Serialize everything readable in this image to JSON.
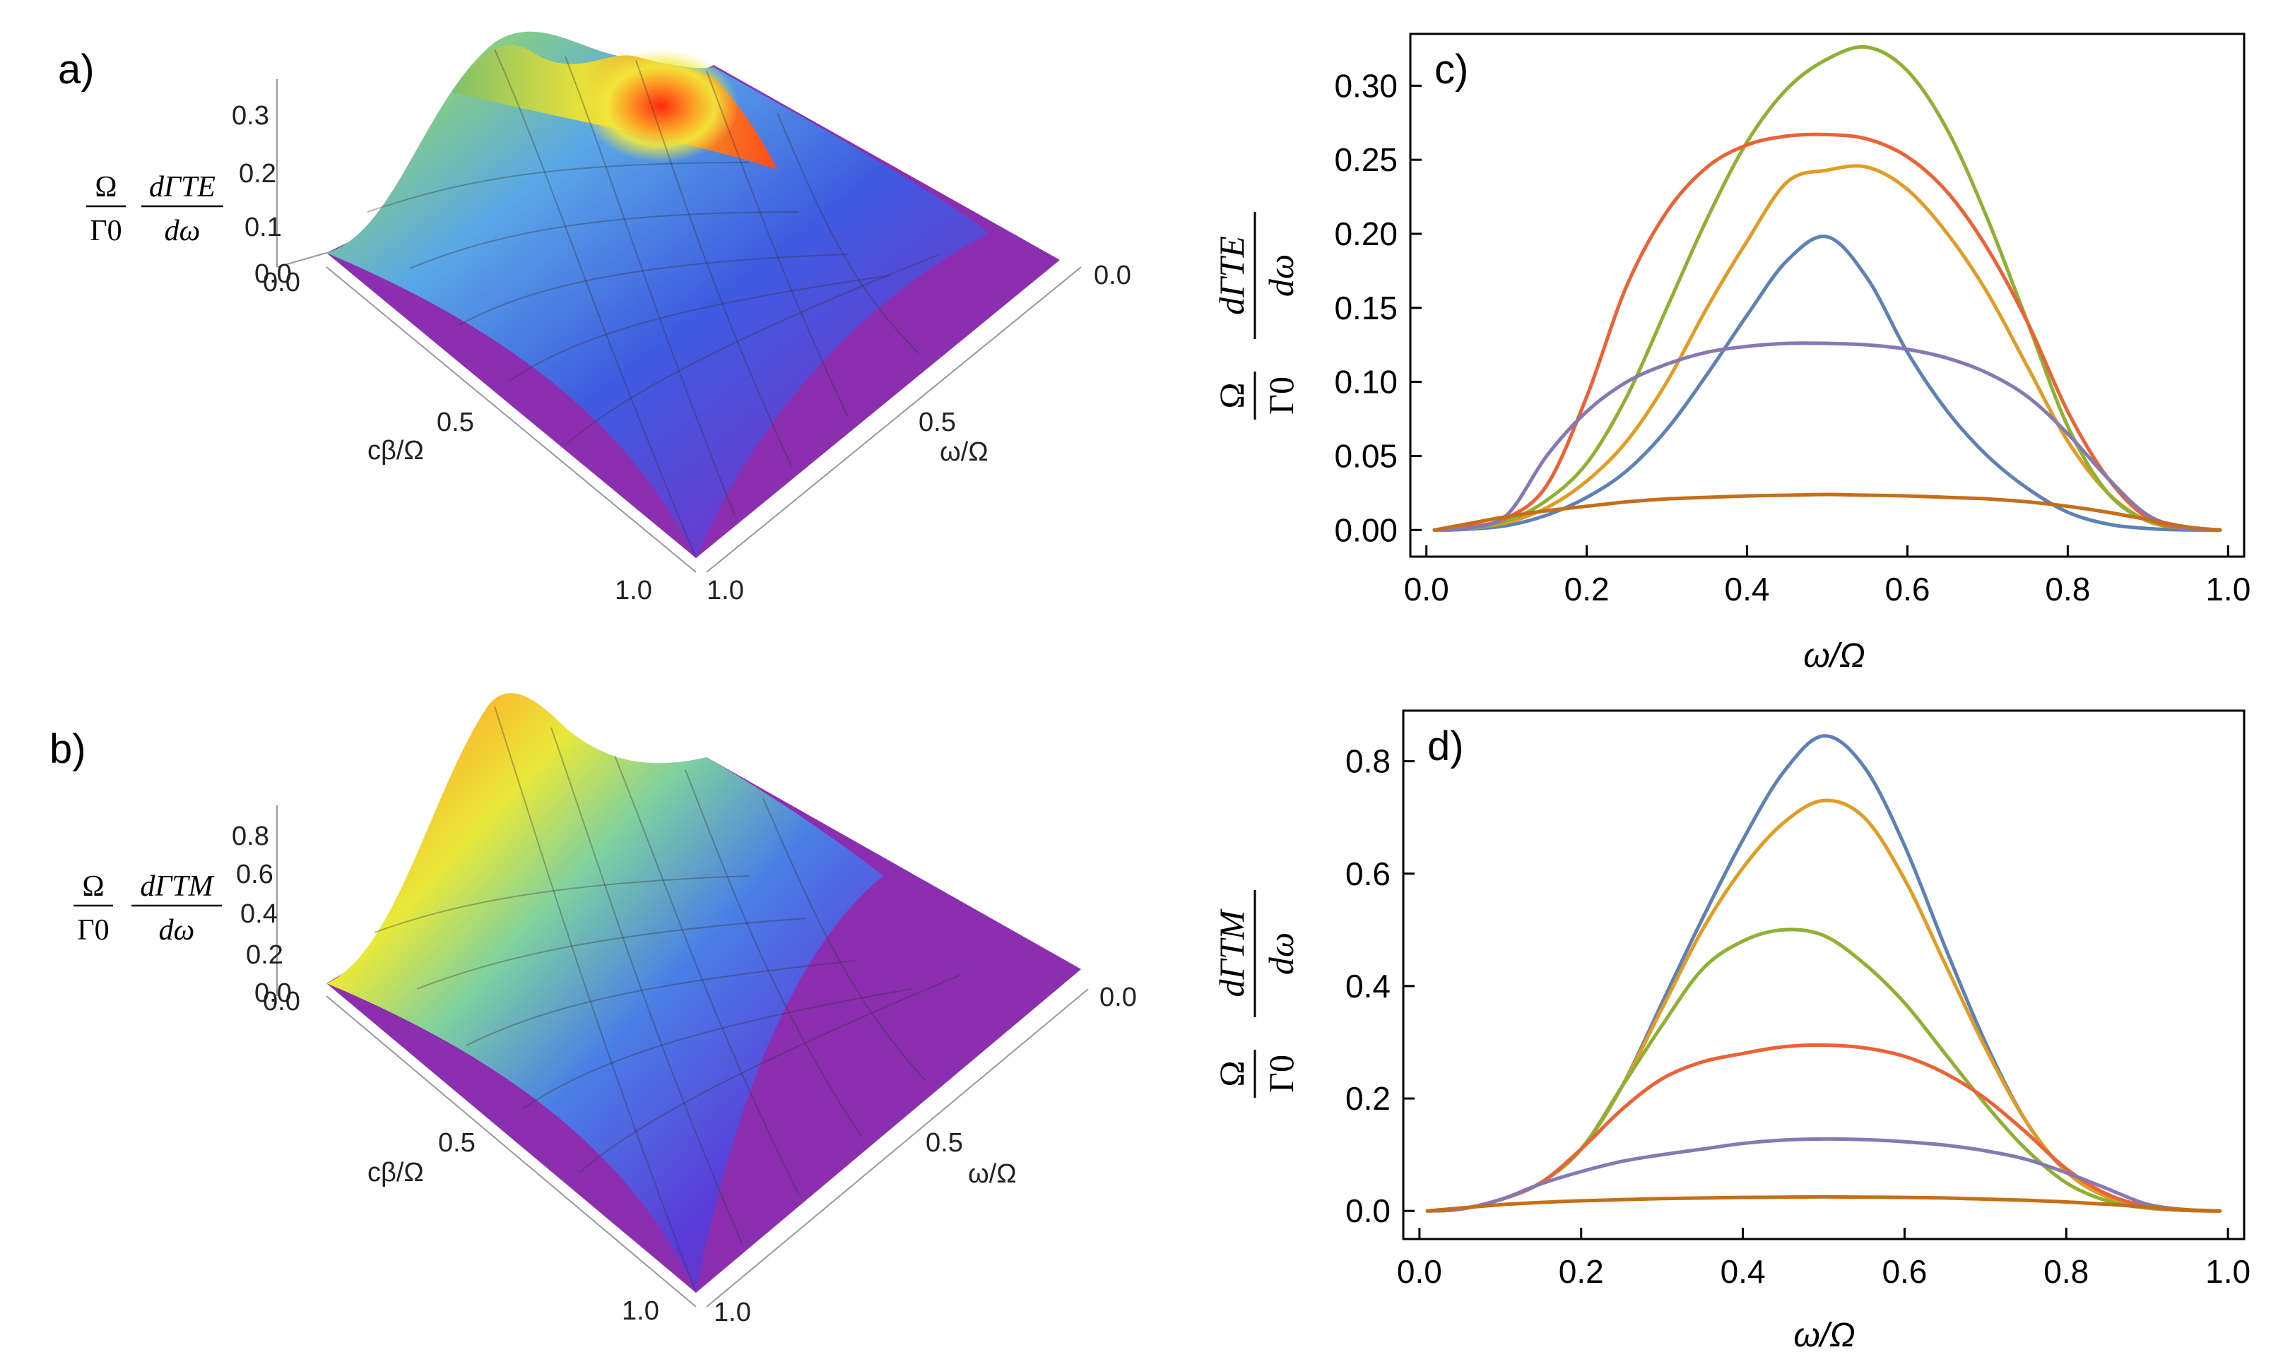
{
  "colors": {
    "blue": "#5E81B5",
    "orange": "#E19C24",
    "green": "#8FB032",
    "red": "#EB6235",
    "purple": "#8778B3",
    "brown": "#C56E1A",
    "surface_low": "#8B2FB0",
    "surface_high": "#FF2A10"
  },
  "panels": {
    "a": {
      "label": "a)",
      "z_ticks": [
        "0.0",
        "0.1",
        "0.2",
        "0.3"
      ],
      "z_ticks_extra": "0.0",
      "x_ticks": [
        "0.5",
        "1.0"
      ],
      "y_ticks": [
        "0.0",
        "0.5",
        "1.0"
      ],
      "x_label": "cβ/Ω",
      "y_label": "ω/Ω",
      "z_label_num": "Ω",
      "z_label_den": "Γ0",
      "z_label_num2": "dΓTE",
      "z_label_den2": "dω"
    },
    "b": {
      "label": "b)",
      "z_ticks": [
        "0.0",
        "0.2",
        "0.4",
        "0.6",
        "0.8"
      ],
      "z_ticks_extra": "0.0",
      "x_ticks": [
        "0.5",
        "1.0"
      ],
      "y_ticks": [
        "0.0",
        "0.5",
        "1.0"
      ],
      "x_label": "cβ/Ω",
      "y_label": "ω/Ω",
      "z_label_num": "Ω",
      "z_label_den": "Γ0",
      "z_label_num2": "dΓTM",
      "z_label_den2": "dω"
    },
    "c": {
      "label": "c)",
      "y_tick_labels": [
        "0.00",
        "0.05",
        "0.10",
        "0.15",
        "0.20",
        "0.25",
        "0.30"
      ],
      "x_tick_labels": [
        "0.0",
        "0.2",
        "0.4",
        "0.6",
        "0.8",
        "1.0"
      ],
      "x_label": "ω/Ω",
      "y_label_num": "Ω",
      "y_label_den": "Γ0",
      "y_label_num2": "dΓTE",
      "y_label_den2": "dω"
    },
    "d": {
      "label": "d)",
      "y_tick_labels": [
        "0.0",
        "0.2",
        "0.4",
        "0.6",
        "0.8"
      ],
      "x_tick_labels": [
        "0.0",
        "0.2",
        "0.4",
        "0.6",
        "0.8",
        "1.0"
      ],
      "x_label": "ω/Ω",
      "y_label_num": "Ω",
      "y_label_den": "Γ0",
      "y_label_num2": "dΓTM",
      "y_label_den2": "dω"
    }
  },
  "chart_data": [
    {
      "id": "c",
      "type": "line",
      "title": "",
      "xlabel": "ω/Ω",
      "ylabel": "Ω/Γ0 dΓTE/dω",
      "xlim": [
        -0.02,
        1.02
      ],
      "ylim": [
        -0.018,
        0.335
      ],
      "x_ticks": [
        0.0,
        0.2,
        0.4,
        0.6,
        0.8,
        1.0
      ],
      "y_ticks": [
        0.0,
        0.05,
        0.1,
        0.15,
        0.2,
        0.25,
        0.3
      ],
      "grid": false,
      "x": [
        0.01,
        0.05,
        0.1,
        0.15,
        0.2,
        0.25,
        0.3,
        0.35,
        0.4,
        0.45,
        0.5,
        0.55,
        0.6,
        0.65,
        0.7,
        0.75,
        0.8,
        0.85,
        0.9,
        0.95,
        0.99
      ],
      "series": [
        {
          "name": "blue",
          "color_key": "blue",
          "values": [
            0.0,
            0.0005,
            0.003,
            0.01,
            0.022,
            0.04,
            0.068,
            0.105,
            0.145,
            0.182,
            0.198,
            0.17,
            0.12,
            0.08,
            0.05,
            0.028,
            0.012,
            0.004,
            0.001,
            0.0,
            0.0
          ]
        },
        {
          "name": "orange",
          "color_key": "orange",
          "values": [
            0.0,
            0.001,
            0.005,
            0.015,
            0.033,
            0.06,
            0.1,
            0.15,
            0.195,
            0.235,
            0.243,
            0.245,
            0.23,
            0.2,
            0.16,
            0.11,
            0.06,
            0.025,
            0.006,
            0.001,
            0.0
          ]
        },
        {
          "name": "green",
          "color_key": "green",
          "values": [
            0.0,
            0.001,
            0.006,
            0.02,
            0.045,
            0.09,
            0.15,
            0.21,
            0.262,
            0.298,
            0.318,
            0.326,
            0.31,
            0.27,
            0.21,
            0.14,
            0.07,
            0.025,
            0.006,
            0.001,
            0.0
          ]
        },
        {
          "name": "red",
          "color_key": "red",
          "values": [
            0.0,
            0.002,
            0.008,
            0.03,
            0.09,
            0.165,
            0.215,
            0.245,
            0.26,
            0.266,
            0.267,
            0.264,
            0.252,
            0.228,
            0.19,
            0.14,
            0.08,
            0.035,
            0.008,
            0.001,
            0.0
          ]
        },
        {
          "name": "purple",
          "color_key": "purple",
          "values": [
            0.0,
            0.001,
            0.01,
            0.05,
            0.08,
            0.1,
            0.112,
            0.12,
            0.124,
            0.126,
            0.126,
            0.125,
            0.122,
            0.116,
            0.106,
            0.09,
            0.065,
            0.035,
            0.01,
            0.001,
            0.0
          ]
        },
        {
          "name": "brown",
          "color_key": "brown",
          "values": [
            0.0,
            0.004,
            0.009,
            0.013,
            0.016,
            0.019,
            0.021,
            0.022,
            0.023,
            0.0235,
            0.024,
            0.0235,
            0.023,
            0.022,
            0.021,
            0.019,
            0.016,
            0.012,
            0.007,
            0.002,
            0.0
          ]
        }
      ]
    },
    {
      "id": "d",
      "type": "line",
      "title": "",
      "xlabel": "ω/Ω",
      "ylabel": "Ω/Γ0 dΓTM/dω",
      "xlim": [
        -0.02,
        1.02
      ],
      "ylim": [
        -0.05,
        0.89
      ],
      "x_ticks": [
        0.0,
        0.2,
        0.4,
        0.6,
        0.8,
        1.0
      ],
      "y_ticks": [
        0.0,
        0.2,
        0.4,
        0.6,
        0.8
      ],
      "grid": false,
      "x": [
        0.01,
        0.05,
        0.1,
        0.15,
        0.2,
        0.25,
        0.3,
        0.35,
        0.4,
        0.45,
        0.5,
        0.55,
        0.6,
        0.65,
        0.7,
        0.75,
        0.8,
        0.85,
        0.9,
        0.95,
        0.99
      ],
      "series": [
        {
          "name": "blue",
          "color_key": "blue",
          "values": [
            0.0,
            0.003,
            0.02,
            0.05,
            0.11,
            0.22,
            0.37,
            0.52,
            0.66,
            0.78,
            0.845,
            0.79,
            0.65,
            0.47,
            0.3,
            0.16,
            0.07,
            0.025,
            0.006,
            0.001,
            0.0
          ]
        },
        {
          "name": "orange",
          "color_key": "orange",
          "values": [
            0.0,
            0.003,
            0.02,
            0.05,
            0.11,
            0.22,
            0.36,
            0.5,
            0.61,
            0.69,
            0.73,
            0.7,
            0.59,
            0.44,
            0.29,
            0.16,
            0.07,
            0.025,
            0.006,
            0.001,
            0.0
          ]
        },
        {
          "name": "green",
          "color_key": "green",
          "values": [
            0.0,
            0.003,
            0.02,
            0.05,
            0.11,
            0.22,
            0.33,
            0.43,
            0.48,
            0.5,
            0.49,
            0.44,
            0.37,
            0.28,
            0.19,
            0.11,
            0.05,
            0.018,
            0.005,
            0.001,
            0.0
          ]
        },
        {
          "name": "red",
          "color_key": "red",
          "values": [
            0.0,
            0.003,
            0.02,
            0.05,
            0.11,
            0.18,
            0.235,
            0.265,
            0.28,
            0.292,
            0.295,
            0.29,
            0.275,
            0.245,
            0.2,
            0.14,
            0.075,
            0.03,
            0.008,
            0.001,
            0.0
          ]
        },
        {
          "name": "purple",
          "color_key": "purple",
          "values": [
            0.0,
            0.003,
            0.02,
            0.048,
            0.07,
            0.088,
            0.1,
            0.11,
            0.12,
            0.126,
            0.128,
            0.127,
            0.123,
            0.117,
            0.107,
            0.092,
            0.068,
            0.04,
            0.012,
            0.002,
            0.0
          ]
        },
        {
          "name": "brown",
          "color_key": "brown",
          "values": [
            0.0,
            0.005,
            0.011,
            0.015,
            0.018,
            0.02,
            0.022,
            0.023,
            0.024,
            0.0245,
            0.025,
            0.0245,
            0.024,
            0.023,
            0.021,
            0.019,
            0.016,
            0.012,
            0.007,
            0.002,
            0.0
          ]
        }
      ]
    }
  ]
}
